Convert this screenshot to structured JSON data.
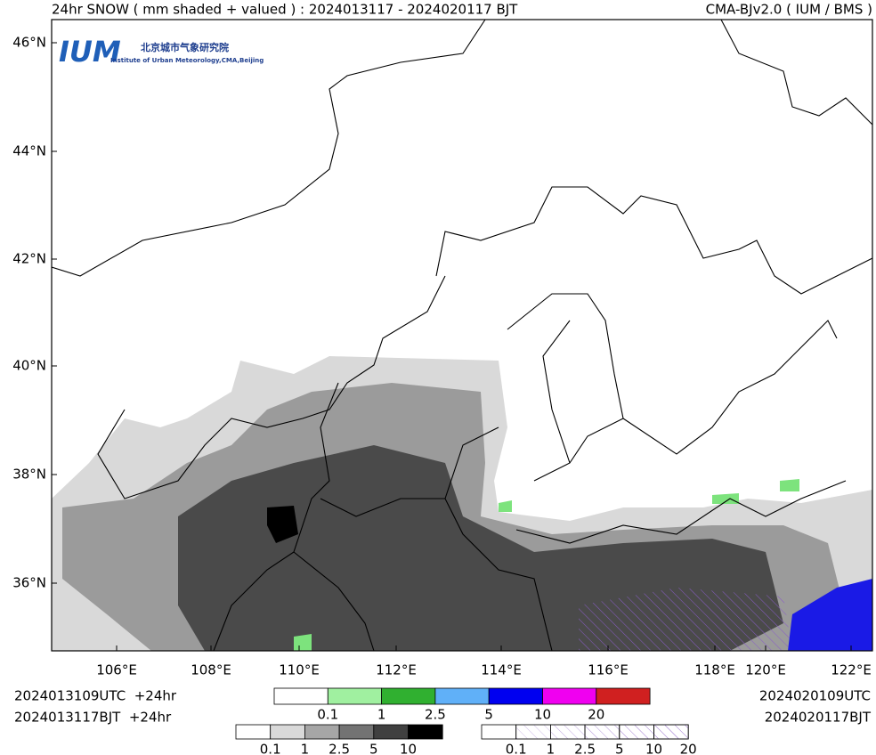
{
  "header": {
    "title": "24hr SNOW ( mm shaded + valued ) : 2024013117 - 2024020117 BJT",
    "model": "CMA-BJv2.0 ( IUM / BMS )"
  },
  "logo": {
    "mark": "IUM",
    "name_cn": "北京城市气象研究院",
    "name_en": "Institute of Urban Meteorology,CMA,Beijing"
  },
  "map": {
    "lat_labels": [
      "46°N",
      "44°N",
      "42°N",
      "40°N",
      "38°N",
      "36°N"
    ],
    "lon_labels": [
      "106°E",
      "108°E",
      "110°E",
      "112°E",
      "114°E",
      "116°E",
      "118°E",
      "120°E",
      "122°E"
    ]
  },
  "footer": {
    "init_utc": "2024013109UTC  +24hr",
    "init_bjt": "2024013117BJT  +24hr",
    "valid_utc": "2024020109UTC",
    "valid_bjt": "2024020117BJT"
  },
  "legends": {
    "color": [
      "0.1",
      "1",
      "2.5",
      "5",
      "10",
      "20"
    ],
    "gray": [
      "0.1",
      "1",
      "2.5",
      "5",
      "10"
    ],
    "hatch": [
      "0.1",
      "1",
      "2.5",
      "5",
      "10",
      "20"
    ]
  }
}
